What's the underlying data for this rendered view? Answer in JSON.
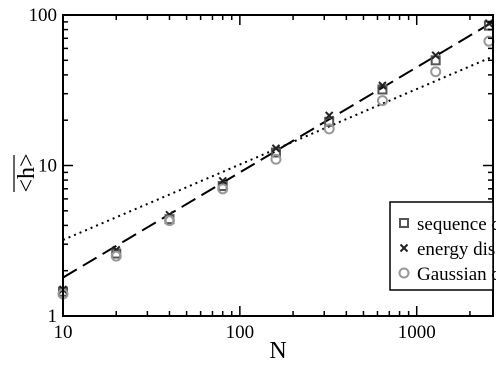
{
  "chart_data": {
    "type": "scatter",
    "xlabel": "N",
    "ylabel": "<h>",
    "xscale": "log",
    "yscale": "log",
    "xlim": [
      10,
      2700
    ],
    "ylim": [
      1,
      100
    ],
    "x_ticks": [
      "10",
      "100",
      "1000"
    ],
    "y_ticks": [
      "1",
      "10",
      "100"
    ],
    "legend_position": "bottom-right",
    "grid": false,
    "series": [
      {
        "name": "sequence disorder",
        "marker": "square",
        "color": "#555555",
        "x": [
          10,
          20,
          40,
          80,
          160,
          320,
          640,
          1280,
          2560
        ],
        "y": [
          1.45,
          2.6,
          4.4,
          7.3,
          12.2,
          19.5,
          32,
          50,
          85
        ]
      },
      {
        "name": "energy disorder",
        "marker": "x",
        "color": "#222222",
        "x": [
          10,
          20,
          40,
          80,
          160,
          320,
          640,
          1280,
          2560
        ],
        "y": [
          1.5,
          2.75,
          4.7,
          7.9,
          13,
          21.5,
          34,
          54,
          88
        ]
      },
      {
        "name": "Gaussian disorder",
        "marker": "circle",
        "color": "#999999",
        "x": [
          10,
          20,
          40,
          80,
          160,
          320,
          640,
          1280,
          2560
        ],
        "y": [
          1.4,
          2.5,
          4.3,
          7.0,
          11,
          17.5,
          27,
          42,
          67
        ]
      }
    ],
    "fit_lines": [
      {
        "style": "dashed",
        "x": [
          10,
          2700
        ],
        "y": [
          1.8,
          90
        ]
      },
      {
        "style": "dotted",
        "x": [
          10,
          2700
        ],
        "y": [
          3.2,
          53
        ]
      }
    ]
  }
}
